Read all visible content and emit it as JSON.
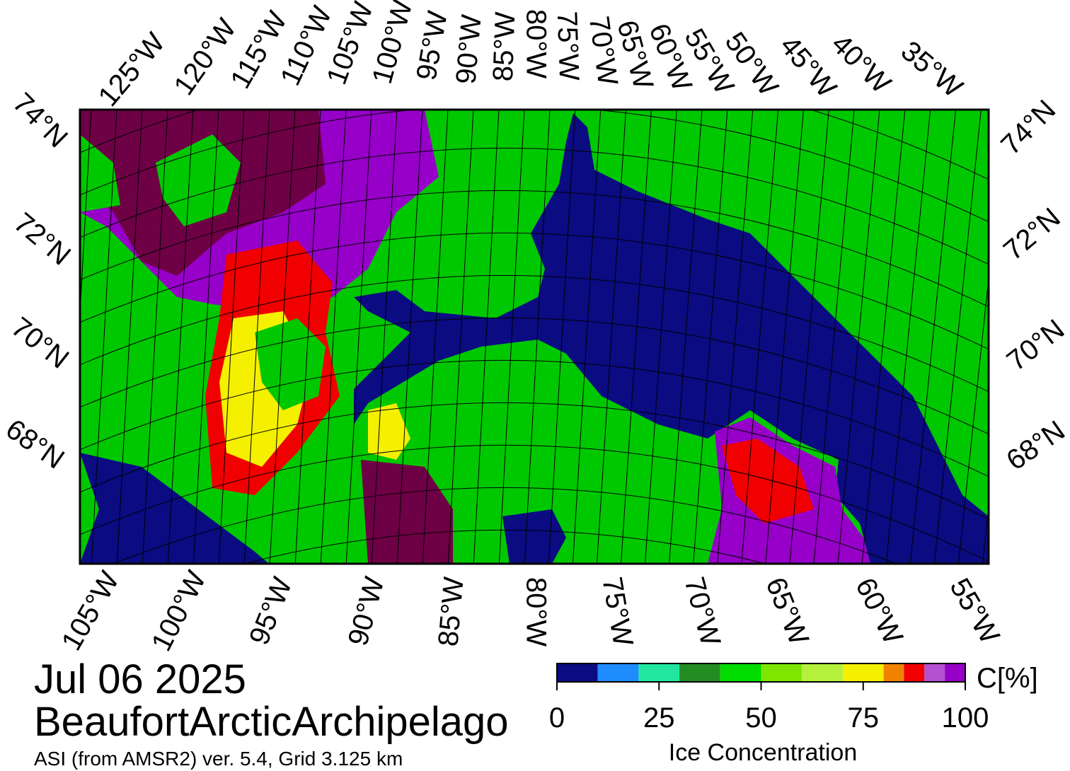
{
  "top_lon_labels": [
    "125°W",
    "120°W",
    "115°W",
    "110°W",
    "105°W",
    "100°W",
    "95°W",
    "90°W",
    "85°W",
    "80°W",
    "75°W",
    "70°W",
    "65°W",
    "60°W",
    "55°W",
    "50°W",
    "45°W",
    "40°W",
    "35°W"
  ],
  "bottom_lon_labels": [
    "105°W",
    "100°W",
    "95°W",
    "90°W",
    "85°W",
    "80°W",
    "75°W",
    "70°W",
    "65°W",
    "60°W",
    "55°W"
  ],
  "left_lat_labels": [
    "74°N",
    "72°N",
    "70°N",
    "68°N"
  ],
  "right_lat_labels": [
    "74°N",
    "72°N",
    "70°N",
    "68°N"
  ],
  "date": "Jul 06 2025",
  "region": "BeaufortArcticArchipelago",
  "subtitle": "ASI (from AMSR2) ver. 5.4,  Grid 3.125 km",
  "colorbar": {
    "unit": "C[%]",
    "label": "Ice Concentration",
    "bounds": [
      0,
      10,
      20,
      30,
      40,
      50,
      60,
      70,
      80,
      85,
      90,
      95,
      100
    ],
    "colors": [
      "#0b0b82",
      "#1e8cff",
      "#22e6a0",
      "#238c23",
      "#00dc00",
      "#7ee600",
      "#b4f03c",
      "#f5f000",
      "#f08200",
      "#f00000",
      "#b450d2",
      "#9600c8"
    ],
    "ticks": [
      0,
      25,
      50,
      75,
      100
    ]
  }
}
